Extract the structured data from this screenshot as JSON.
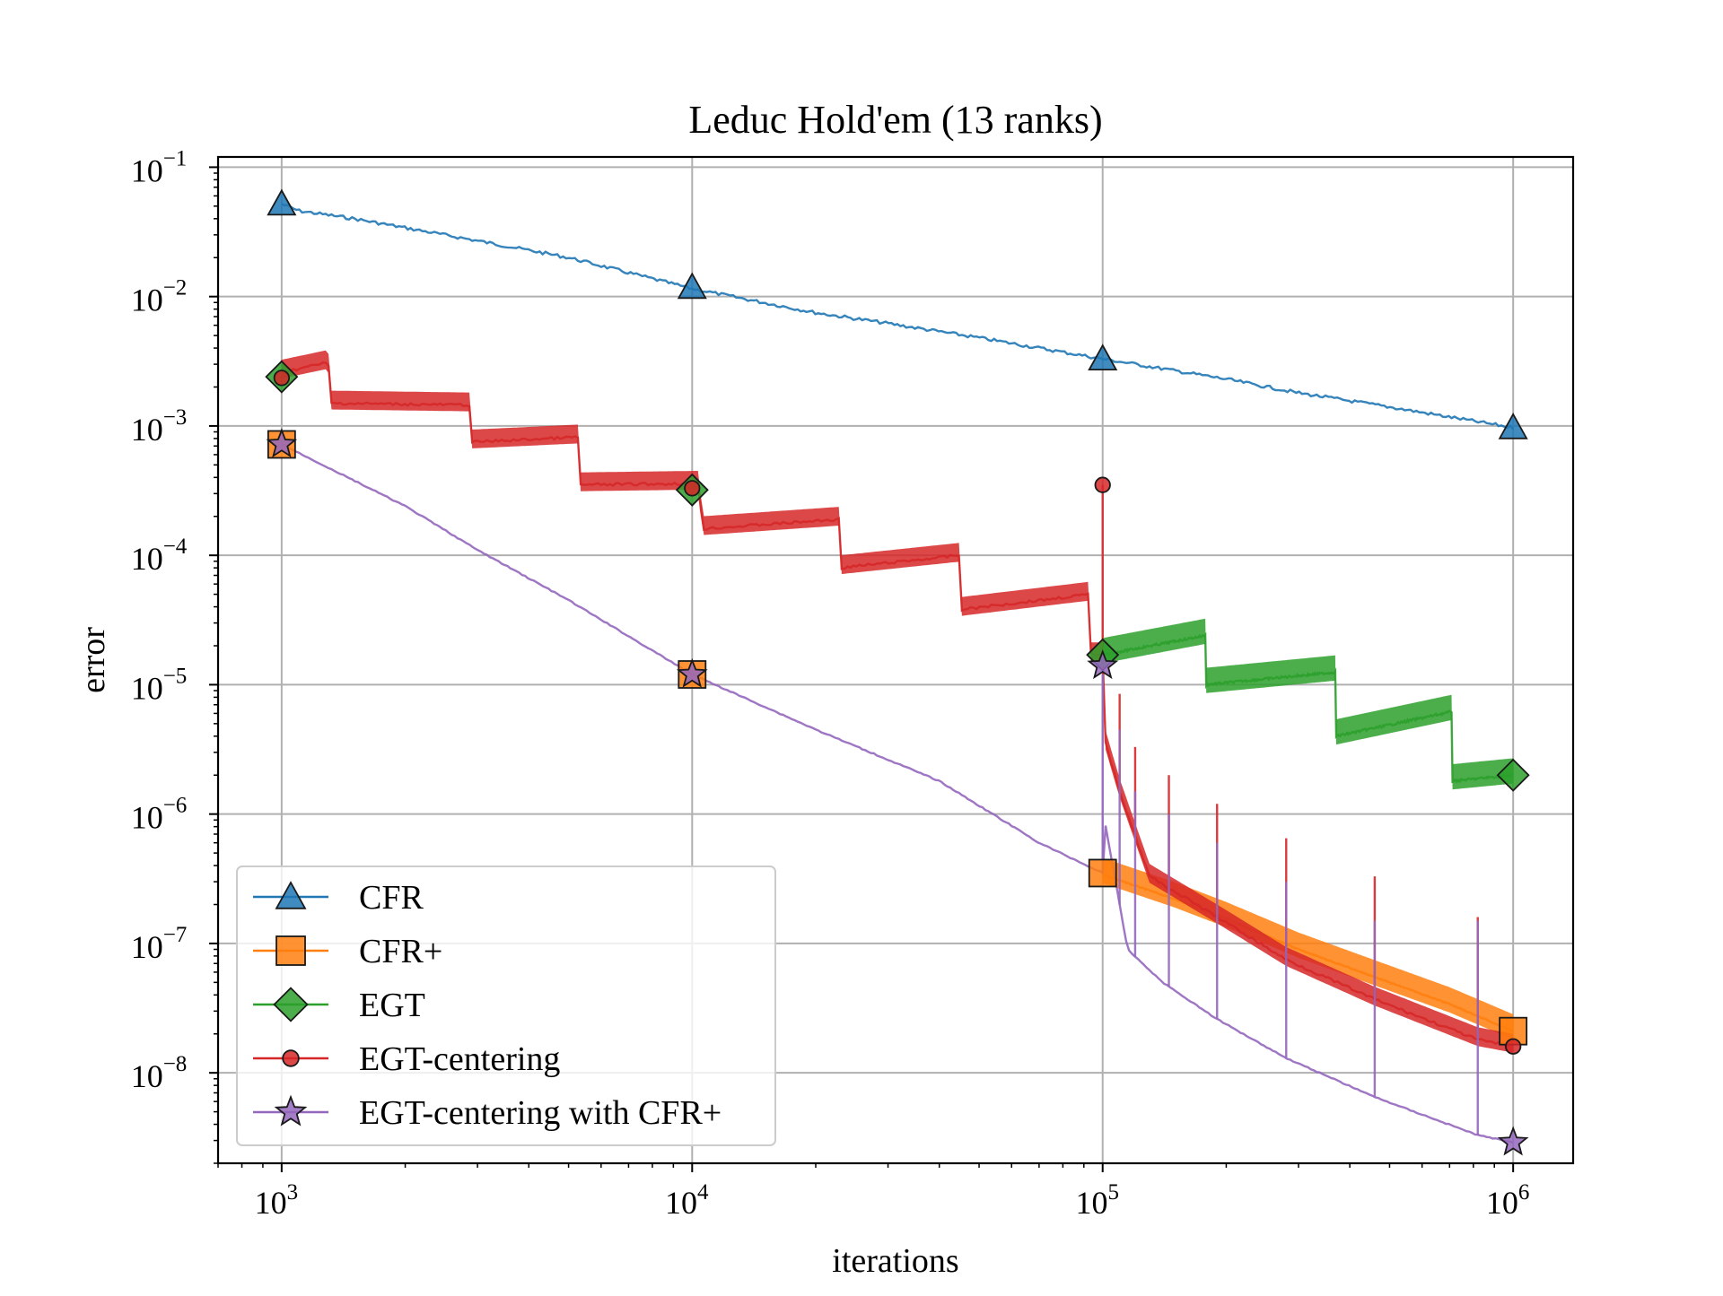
{
  "chart_data": {
    "type": "line",
    "title": "Leduc Hold'em (13 ranks)",
    "xlabel": "iterations",
    "ylabel": "error",
    "xscale": "log",
    "yscale": "log",
    "xlim": [
      700,
      1400000
    ],
    "ylim": [
      2e-09,
      0.12
    ],
    "grid": true,
    "legend_position": "lower-left",
    "x_ticks": [
      {
        "value": 1000,
        "base": "10",
        "exp": "3"
      },
      {
        "value": 10000,
        "base": "10",
        "exp": "4"
      },
      {
        "value": 100000,
        "base": "10",
        "exp": "5"
      },
      {
        "value": 1000000,
        "base": "10",
        "exp": "6"
      }
    ],
    "y_ticks": [
      {
        "value": 0.1,
        "base": "10",
        "exp": "−1"
      },
      {
        "value": 0.01,
        "base": "10",
        "exp": "−2"
      },
      {
        "value": 0.001,
        "base": "10",
        "exp": "−3"
      },
      {
        "value": 0.0001,
        "base": "10",
        "exp": "−4"
      },
      {
        "value": 1e-05,
        "base": "10",
        "exp": "−5"
      },
      {
        "value": 1e-06,
        "base": "10",
        "exp": "−6"
      },
      {
        "value": 1e-07,
        "base": "10",
        "exp": "−7"
      },
      {
        "value": 1e-08,
        "base": "10",
        "exp": "−8"
      }
    ],
    "series": [
      {
        "name": "CFR",
        "color": "#1f77b4",
        "marker": "triangle",
        "x": [
          1000,
          1100,
          1500,
          2000,
          3000,
          5000,
          10000,
          20000,
          30000,
          50000,
          100000,
          200000,
          300000,
          500000,
          1000000
        ],
        "y": [
          0.052,
          0.046,
          0.04,
          0.034,
          0.027,
          0.02,
          0.0115,
          0.0075,
          0.0062,
          0.0048,
          0.0033,
          0.0023,
          0.0018,
          0.0014,
          0.00097
        ],
        "markers_x": [
          1000,
          10000,
          100000,
          1000000
        ],
        "markers_y": [
          0.052,
          0.0118,
          0.0033,
          0.00097
        ],
        "noise": 0.06,
        "band": 1.0
      },
      {
        "name": "CFR+",
        "color": "#ff7f0e",
        "marker": "square",
        "x": [
          100000,
          150000,
          200000,
          300000,
          500000,
          700000,
          1000000
        ],
        "y": [
          3.4e-07,
          2.2e-07,
          1.55e-07,
          9e-08,
          5e-08,
          3.4e-08,
          2.1e-08
        ],
        "markers_x": [
          1000,
          10000,
          100000,
          1000000
        ],
        "markers_y": [
          0.00072,
          1.2e-05,
          3.5e-07,
          2.1e-08
        ],
        "noise": 0.02,
        "band": 1.35
      },
      {
        "name": "EGT",
        "color": "#2ca02c",
        "marker": "diamond",
        "x": [
          100000,
          178000,
          178100,
          370000,
          370100,
          710000,
          710100,
          1000000
        ],
        "y": [
          1.7e-05,
          2.4e-05,
          1e-05,
          1.25e-05,
          4e-06,
          6.2e-06,
          1.8e-06,
          2e-06
        ],
        "markers_x": [
          1000,
          10000,
          100000,
          1000000
        ],
        "markers_y": [
          0.0024,
          0.00032,
          1.7e-05,
          2e-06
        ],
        "noise": 0.04,
        "band": 1.35
      },
      {
        "name": "EGT-centering",
        "color": "#d62728",
        "marker": "circle",
        "x": [
          1000,
          1300,
          1310,
          2900,
          2910,
          5300,
          5310,
          10500,
          10510,
          23000,
          23010,
          45000,
          45010,
          93000,
          93010,
          100000,
          100500,
          110000,
          130000,
          190000,
          280000,
          460000,
          820000,
          1000000
        ],
        "y": [
          0.0026,
          0.0031,
          0.0015,
          0.00145,
          0.00075,
          0.00082,
          0.00035,
          0.00036,
          0.00016,
          0.00019,
          8e-05,
          0.0001,
          3.8e-05,
          5e-05,
          1.7e-05,
          1.7e-05,
          4e-06,
          1.5e-06,
          3.3e-07,
          1.6e-07,
          7.5e-08,
          3.7e-08,
          1.8e-08,
          1.6e-08
        ],
        "spikes": [
          [
            100000,
            0.00035
          ],
          [
            110000,
            8.5e-06
          ],
          [
            120000,
            3.3e-06
          ],
          [
            145000,
            2e-06
          ],
          [
            190000,
            1.2e-06
          ],
          [
            280000,
            6.5e-07
          ],
          [
            460000,
            3.3e-07
          ],
          [
            820000,
            1.6e-07
          ]
        ],
        "markers_x": [
          1000,
          10000,
          100000,
          1000000
        ],
        "markers_y": [
          0.00235,
          0.00033,
          0.00035,
          1.6e-08
        ],
        "noise": 0.05,
        "band": 1.25
      },
      {
        "name": "EGT-centering with CFR+",
        "color": "#9467bd",
        "marker": "star",
        "x": [
          1000,
          2000,
          3000,
          5000,
          10000,
          20000,
          40000,
          70000,
          100000,
          100500,
          115000,
          140000,
          190000,
          280000,
          460000,
          820000,
          1000000
        ],
        "y": [
          0.00072,
          0.00024,
          0.00011,
          4.5e-05,
          1.2e-05,
          4.5e-06,
          1.8e-06,
          6e-07,
          3.5e-07,
          1e-06,
          9e-08,
          5e-08,
          2.6e-08,
          1.3e-08,
          6.5e-09,
          3.3e-09,
          2.9e-09
        ],
        "spikes": [
          [
            100000,
            1.2e-05
          ],
          [
            110000,
            4.5e-06
          ],
          [
            120000,
            1.5e-06
          ],
          [
            145000,
            1e-06
          ],
          [
            190000,
            6e-07
          ],
          [
            280000,
            3e-07
          ],
          [
            460000,
            1.5e-07
          ],
          [
            820000,
            1.5e-07
          ]
        ],
        "markers_x": [
          1000,
          10000,
          100000,
          1000000
        ],
        "markers_y": [
          0.00072,
          1.2e-05,
          1.4e-05,
          2.9e-09
        ],
        "noise": 0.02,
        "band": 1.0
      }
    ]
  }
}
